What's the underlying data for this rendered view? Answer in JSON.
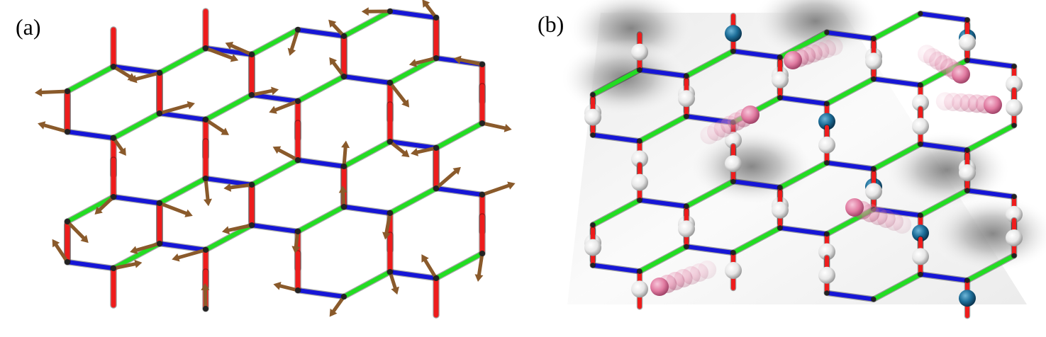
{
  "panel_a": {
    "label": "(a)"
  },
  "panel_b": {
    "label": "(b)"
  },
  "colors": {
    "bond_x": "#1616d6",
    "bond_y": "#22dd22",
    "bond_z": "#ee1c1c",
    "spin_arrow": "#8a5a2b",
    "vortex_shade": "#555555",
    "flux_sphere": "#1d6e99",
    "plain_sphere": "#f2f2f2",
    "fermion_trail": "#e07aa0"
  },
  "icons": {
    "spin_arrow": "arrow",
    "flux": "blue-sphere",
    "empty_site": "white-sphere",
    "fermion": "pink-sphere-trail"
  }
}
